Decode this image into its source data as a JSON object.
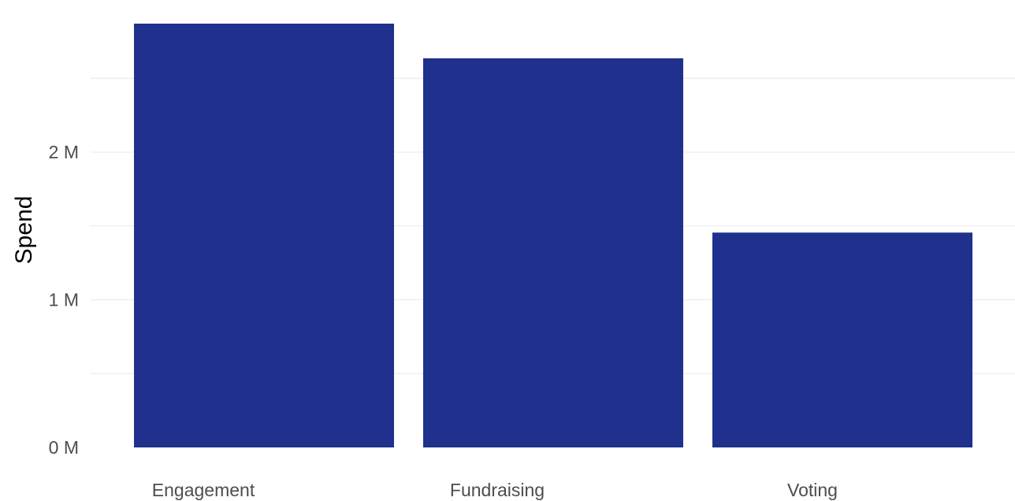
{
  "chart_data": {
    "type": "bar",
    "categories": [
      "Engagement",
      "Fundraising",
      "Voting"
    ],
    "values": [
      2870000,
      2635000,
      1455000
    ],
    "xlabel": "",
    "ylabel": "Spend",
    "ylim": [
      0,
      2950000
    ],
    "y_ticks": [
      {
        "value": 0,
        "label": "0 M"
      },
      {
        "value": 1000000,
        "label": "1 M"
      },
      {
        "value": 2000000,
        "label": "2 M"
      }
    ],
    "minor_gridlines": [
      500000,
      1500000,
      2500000
    ],
    "grid": true,
    "legend": "none",
    "bar_color": "#1f318c",
    "gridline_color": "#ebebeb",
    "background": "#ffffff"
  }
}
